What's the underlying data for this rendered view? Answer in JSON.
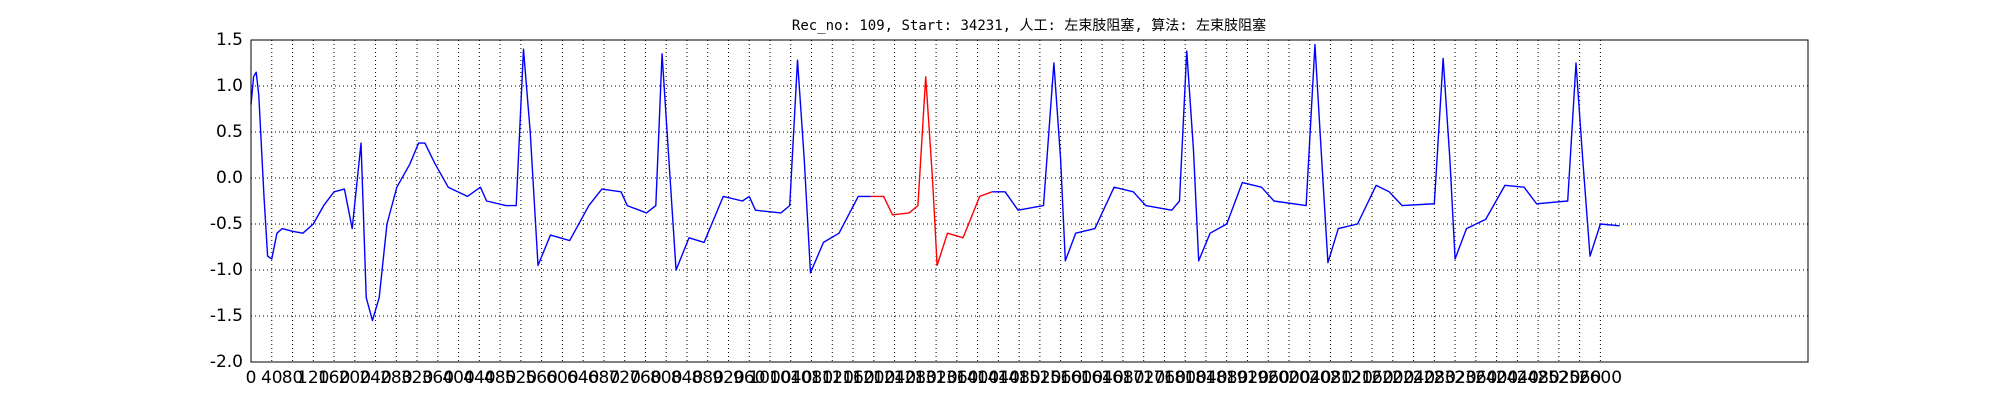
{
  "chart_data": {
    "type": "line",
    "title": "Rec_no: 109, Start: 34231, 人工: 左束肢阻塞, 算法: 左束肢阻塞",
    "x": [
      0,
      5,
      10,
      15,
      25,
      32,
      40,
      50,
      60,
      80,
      100,
      120,
      140,
      160,
      180,
      195,
      212,
      222,
      234,
      247,
      262,
      281,
      306,
      323,
      335,
      355,
      380,
      417,
      442,
      454,
      491,
      511,
      525,
      538,
      553,
      577,
      614,
      651,
      676,
      713,
      725,
      762,
      780,
      792,
      804,
      819,
      844,
      873,
      910,
      947,
      960,
      972,
      1021,
      1038,
      1053,
      1066,
      1078,
      1103,
      1133,
      1170,
      1194,
      1219,
      1236,
      1268,
      1285,
      1300,
      1313,
      1322,
      1342,
      1372,
      1404,
      1428,
      1453,
      1478,
      1527,
      1547,
      1560,
      1569,
      1589,
      1626,
      1663,
      1700,
      1724,
      1774,
      1789,
      1803,
      1816,
      1826,
      1848,
      1880,
      1910,
      1947,
      1971,
      2033,
      2050,
      2063,
      2075,
      2095,
      2132,
      2168,
      2193,
      2218,
      2280,
      2297,
      2310,
      2320,
      2342,
      2379,
      2416,
      2453,
      2477,
      2537,
      2553,
      2566,
      2580,
      2600,
      2637
    ],
    "series": [
      {
        "color": "#0000ff",
        "values": [
          0.8,
          1.1,
          1.15,
          0.9,
          -0.2,
          -0.85,
          -0.88,
          -0.6,
          -0.55,
          -0.58,
          -0.6,
          -0.5,
          -0.3,
          -0.15,
          -0.12,
          -0.55,
          0.38,
          -1.3,
          -1.55,
          -1.3,
          -0.5,
          -0.1,
          0.15,
          0.38,
          0.38,
          0.15,
          -0.1,
          -0.2,
          -0.1,
          -0.25,
          -0.3,
          -0.3,
          1.4,
          0.5,
          -0.95,
          -0.62,
          -0.68,
          -0.3,
          -0.12,
          -0.15,
          -0.3,
          -0.38,
          -0.3,
          1.35,
          0.3,
          -1.0,
          -0.65,
          -0.7,
          -0.2,
          -0.25,
          -0.2,
          -0.35,
          -0.38,
          -0.3,
          1.28,
          0.2,
          -1.03,
          -0.7,
          -0.6,
          -0.2,
          -0.2,
          null,
          null,
          null,
          null,
          null,
          null,
          null,
          null,
          null,
          null,
          -0.15,
          -0.15,
          -0.35,
          -0.3,
          1.25,
          0.2,
          -0.9,
          -0.6,
          -0.55,
          -0.1,
          -0.15,
          -0.3,
          -0.35,
          -0.25,
          1.38,
          0.3,
          -0.9,
          -0.6,
          -0.5,
          -0.05,
          -0.1,
          -0.25,
          -0.3,
          1.45,
          0.2,
          -0.92,
          -0.55,
          -0.5,
          -0.08,
          -0.15,
          -0.3,
          -0.28,
          1.3,
          0.2,
          -0.88,
          -0.55,
          -0.45,
          -0.08,
          -0.1,
          -0.28,
          -0.25,
          1.25,
          0.2,
          -0.85,
          -0.5,
          -0.52
        ]
      },
      {
        "color": "#ff0000",
        "values": [
          null,
          null,
          null,
          null,
          null,
          null,
          null,
          null,
          null,
          null,
          null,
          null,
          null,
          null,
          null,
          null,
          null,
          null,
          null,
          null,
          null,
          null,
          null,
          null,
          null,
          null,
          null,
          null,
          null,
          null,
          null,
          null,
          null,
          null,
          null,
          null,
          null,
          null,
          null,
          null,
          null,
          null,
          null,
          null,
          null,
          null,
          null,
          null,
          null,
          null,
          null,
          null,
          null,
          null,
          null,
          null,
          null,
          null,
          null,
          null,
          -0.2,
          -0.2,
          -0.4,
          -0.38,
          -0.3,
          1.1,
          0.0,
          -0.95,
          -0.6,
          -0.65,
          -0.2,
          -0.15,
          null,
          null,
          null,
          null,
          null,
          null,
          null,
          null,
          null,
          null,
          null,
          null,
          null,
          null,
          null,
          null,
          null,
          null,
          null,
          null,
          null,
          null,
          null,
          null,
          null,
          null,
          null,
          null,
          null,
          null,
          null,
          null,
          null,
          null,
          null,
          null,
          null,
          null,
          null,
          null,
          null,
          null,
          null,
          null,
          null
        ]
      }
    ],
    "xlim": [
      0,
      3000
    ],
    "xticks": [
      0,
      40,
      80,
      120,
      160,
      200,
      240,
      280,
      320,
      360,
      400,
      440,
      480,
      520,
      560,
      600,
      640,
      680,
      720,
      760,
      800,
      840,
      880,
      920,
      960,
      1000,
      1040,
      1080,
      1120,
      1160,
      1200,
      1240,
      1280,
      1320,
      1360,
      1400,
      1440,
      1480,
      1520,
      1560,
      1600,
      1640,
      1680,
      1720,
      1760,
      1800,
      1840,
      1880,
      1920,
      1960,
      2000,
      2040,
      2080,
      2120,
      2160,
      2200,
      2240,
      2280,
      2320,
      2360,
      2400,
      2440,
      2480,
      2520,
      2560,
      2600
    ],
    "ylim": [
      -2.0,
      1.5
    ],
    "yticks": [
      {
        "value": -2,
        "label": "-2.0"
      },
      -1.5,
      {
        "value": -1,
        "label": "-1.0"
      },
      -0.5,
      {
        "value": 0,
        "label": "0.0"
      },
      0.5,
      {
        "value": 1,
        "label": "1.0"
      },
      1.5
    ],
    "grid": true
  }
}
